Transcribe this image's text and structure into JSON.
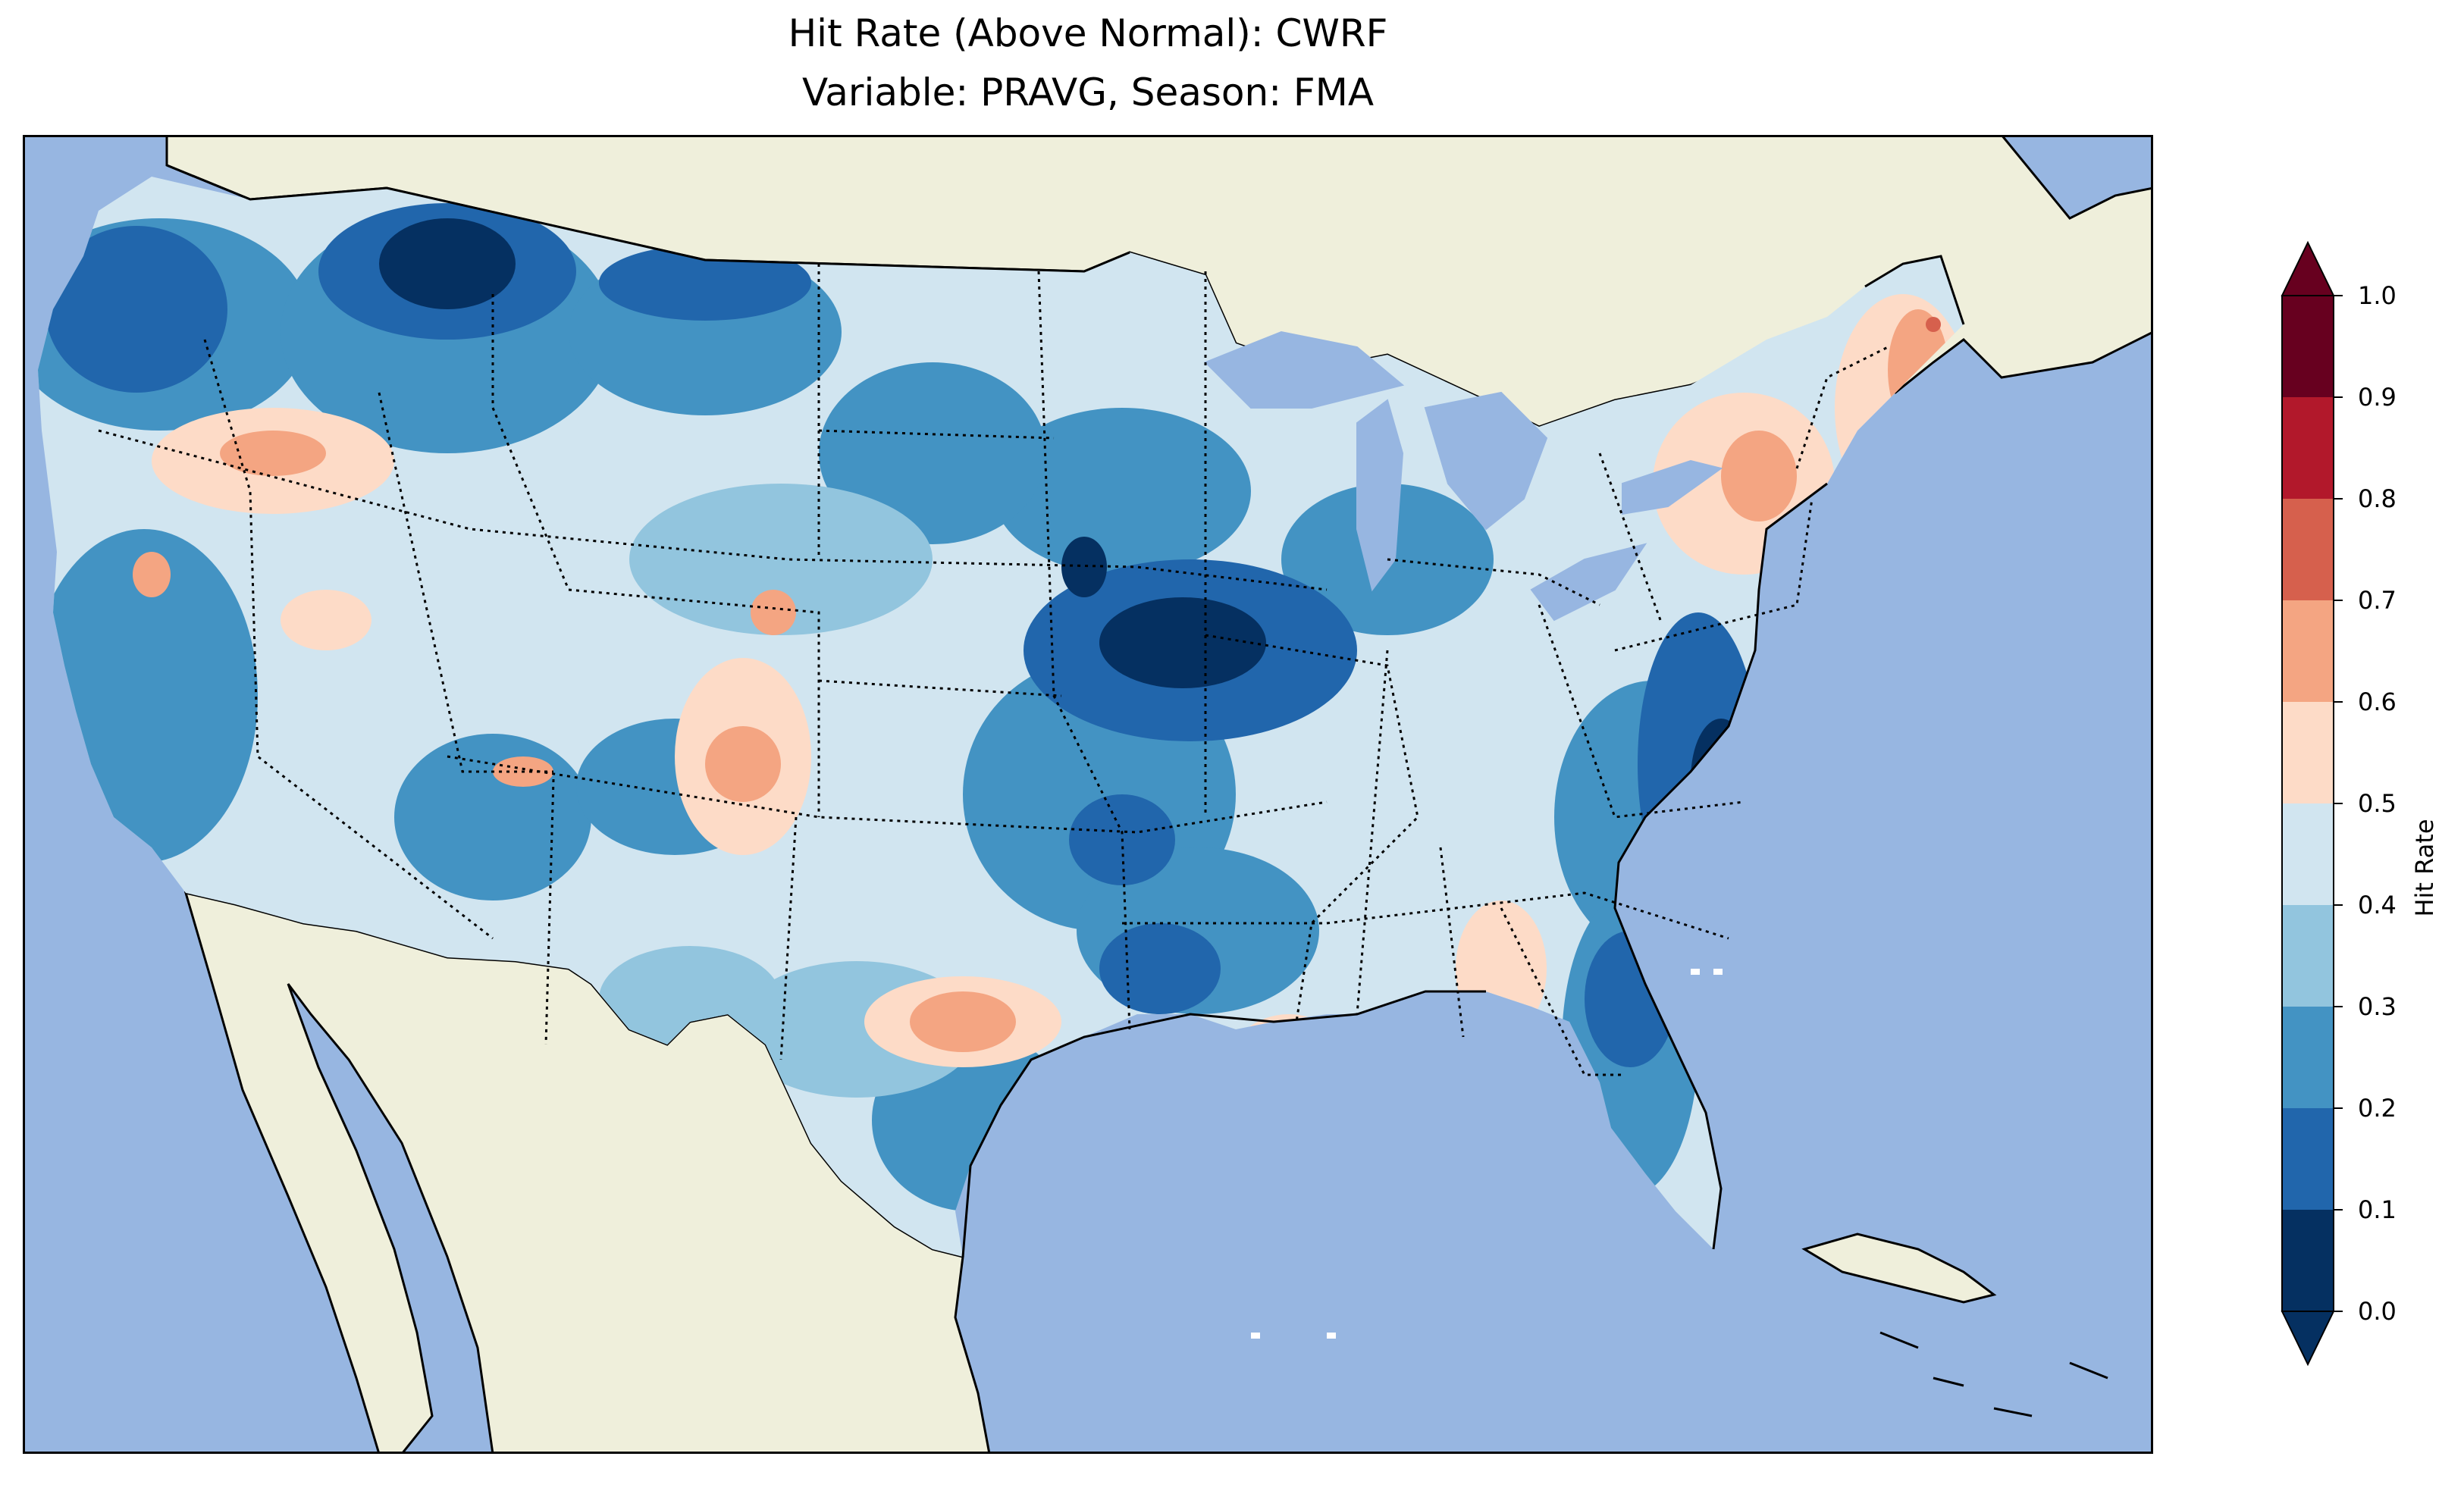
{
  "title": {
    "line1": "Hit Rate (Above Normal): CWRF",
    "line2": "Variable: PRAVG, Season: FMA"
  },
  "colors": {
    "ocean": "#97b6e1",
    "land": "#efefdb",
    "frame": "#000000"
  },
  "colorbar": {
    "label": "Hit Rate",
    "extend": "both",
    "levels": [
      "0.0",
      "0.1",
      "0.2",
      "0.3",
      "0.4",
      "0.5",
      "0.6",
      "0.7",
      "0.8",
      "0.9",
      "1.0"
    ],
    "colors": [
      "#053061",
      "#2166ac",
      "#4393c3",
      "#92c5de",
      "#d1e5f0",
      "#fddbc7",
      "#f4a582",
      "#d6604d",
      "#b2182b",
      "#67001f"
    ],
    "under_color": "#053061",
    "over_color": "#67001f"
  },
  "map": {
    "region": "Contiguous United States",
    "projection": "lat-lon",
    "state_borders": "dotted",
    "coastlines": true
  }
}
